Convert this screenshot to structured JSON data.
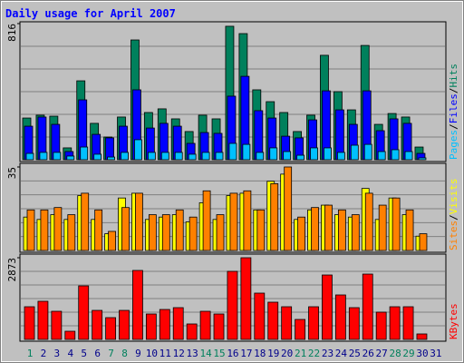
{
  "chart_data": [
    {
      "type": "bar",
      "title": "Daily usage for April 2007",
      "categories": [
        "1",
        "2",
        "3",
        "4",
        "5",
        "6",
        "7",
        "8",
        "9",
        "10",
        "11",
        "12",
        "13",
        "14",
        "15",
        "16",
        "17",
        "18",
        "19",
        "20",
        "21",
        "22",
        "23",
        "24",
        "25",
        "26",
        "27",
        "28",
        "29",
        "30",
        "31"
      ],
      "category_colors": [
        "#00805c",
        "#00008b",
        "#00008b",
        "#00008b",
        "#00008b",
        "#00008b",
        "#00805c",
        "#00805c",
        "#00008b",
        "#00008b",
        "#00008b",
        "#00008b",
        "#00008b",
        "#00805c",
        "#00805c",
        "#00008b",
        "#00008b",
        "#00008b",
        "#00008b",
        "#00008b",
        "#00805c",
        "#00805c",
        "#00008b",
        "#00008b",
        "#00008b",
        "#00008b",
        "#00008b",
        "#00805c",
        "#00805c",
        "#00008b",
        "#00008b"
      ],
      "ylim": [
        0,
        816
      ],
      "yticks": [
        816
      ],
      "legend_separator": "/",
      "series": [
        {
          "name": "Hits",
          "color": "#00805c",
          "values": [
            250,
            267,
            261,
            71,
            473,
            218,
            136,
            256,
            718,
            283,
            305,
            245,
            169,
            267,
            245,
            800,
            756,
            419,
            348,
            283,
            169,
            267,
            626,
            408,
            299,
            685,
            212,
            277,
            256,
            76,
            null
          ]
        },
        {
          "name": "Files",
          "color": "#0000ff",
          "values": [
            201,
            256,
            212,
            49,
            359,
            152,
            131,
            201,
            419,
            190,
            218,
            201,
            98,
            163,
            158,
            381,
            500,
            294,
            250,
            141,
            131,
            239,
            413,
            299,
            212,
            413,
            174,
            245,
            218,
            38,
            null
          ]
        },
        {
          "name": "Pages",
          "color": "#00c0ff",
          "values": [
            38,
            44,
            44,
            22,
            76,
            33,
            16,
            44,
            120,
            44,
            44,
            44,
            33,
            44,
            44,
            98,
            92,
            44,
            71,
            49,
            27,
            71,
            71,
            44,
            87,
            92,
            49,
            60,
            49,
            11,
            null
          ]
        }
      ]
    },
    {
      "type": "bar",
      "ylim": [
        0,
        35
      ],
      "yticks": [
        35
      ],
      "legend_separator": "/",
      "series": [
        {
          "name": "Visits",
          "color": "#ffff00",
          "values": [
            14,
            13,
            15,
            13,
            23,
            13,
            7,
            22,
            24,
            13,
            14,
            15,
            12,
            20,
            13,
            23,
            24,
            17,
            29,
            32,
            13,
            17,
            19,
            15,
            14,
            26,
            13,
            22,
            15,
            6,
            null
          ]
        },
        {
          "name": "Sites",
          "color": "#ff8000",
          "values": [
            17,
            17,
            18,
            15,
            24,
            17,
            8,
            18,
            24,
            15,
            15,
            17,
            14,
            25,
            15,
            24,
            25,
            17,
            28,
            35,
            14,
            18,
            19,
            17,
            15,
            24,
            19,
            22,
            17,
            7,
            null
          ]
        }
      ]
    },
    {
      "type": "bar",
      "ylim": [
        0,
        2873
      ],
      "yticks": [
        2873
      ],
      "series": [
        {
          "name": "KBytes",
          "color": "#ff0000",
          "values": [
            1149,
            1341,
            989,
            287,
            1883,
            1021,
            766,
            1021,
            2426,
            894,
            1053,
            1117,
            543,
            989,
            894,
            2394,
            2873,
            1628,
            1309,
            1149,
            702,
            1149,
            2266,
            1564,
            1117,
            2298,
            958,
            1149,
            1149,
            192,
            null
          ]
        }
      ]
    }
  ]
}
